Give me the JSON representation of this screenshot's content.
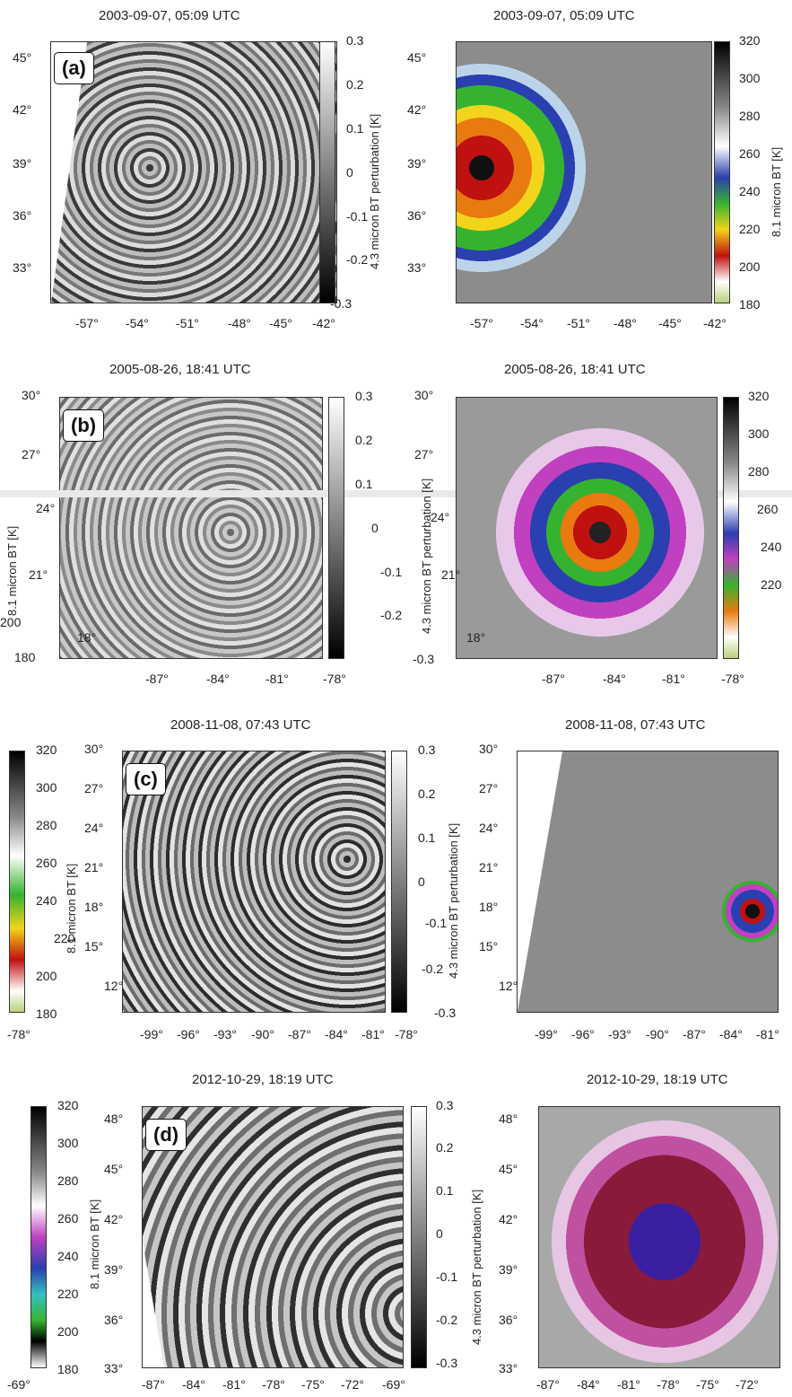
{
  "rows": [
    {
      "tag": "(a)",
      "left_title": "2003-09-07, 05:09 UTC",
      "right_title": "2003-09-07, 05:09 UTC",
      "lat_ticks": [
        "45°",
        "42°",
        "39°",
        "36°",
        "33°"
      ],
      "right_lat_ticks": [
        "45°",
        "42°",
        "39°",
        "36°",
        "33°"
      ],
      "lon_ticks": [
        "-57°",
        "-54°",
        "-51°",
        "-48°",
        "-45°",
        "-42°"
      ],
      "right_lon_ticks": [
        "-57°",
        "-54°",
        "-51°",
        "-48°",
        "-45°",
        "-42°"
      ],
      "pert_ticks": [
        "0.3",
        "0.2",
        "0.1",
        "0",
        "-0.1",
        "-0.2",
        "-0.3"
      ],
      "pert_label": "4.3 micron BT perturbation [K]",
      "bt_ticks": [
        "320",
        "300",
        "280",
        "260",
        "240",
        "220",
        "200",
        "180"
      ],
      "bt_label": "8.1 micron BT [K]"
    },
    {
      "tag": "(b)",
      "left_title": "2005-08-26, 18:41 UTC",
      "right_title": "2005-08-26, 18:41 UTC",
      "lat_ticks": [
        "30°",
        "27°",
        "24°",
        "21°",
        "18°"
      ],
      "right_lat_ticks": [
        "30°",
        "27°",
        "24°",
        "21°",
        "18°"
      ],
      "lon_ticks": [
        "-87°",
        "-84°",
        "-81°",
        "-78°"
      ],
      "right_lon_ticks": [
        "-87°",
        "-84°",
        "-81°",
        "-78°"
      ],
      "pert_ticks": [
        "0.3",
        "0.2",
        "0.1",
        "0",
        "-0.1",
        "-0.2",
        "-0.3"
      ],
      "pert_label": "4.3 micron BT perturbation [K]",
      "bt_ticks": [
        "320",
        "300",
        "280",
        "260",
        "240",
        "220",
        "200",
        "180"
      ],
      "bt_label": "8.1 micron BT [K]"
    },
    {
      "tag": "(c)",
      "left_title": "2008-11-08, 07:43 UTC",
      "right_title": "2008-11-08, 07:43 UTC",
      "lat_ticks": [
        "30°",
        "27°",
        "24°",
        "21°",
        "18°",
        "15°",
        "12°"
      ],
      "right_lat_ticks": [
        "30°",
        "27°",
        "24°",
        "21°",
        "18°",
        "15°",
        "12°"
      ],
      "lon_ticks": [
        "-99°",
        "-96°",
        "-93°",
        "-90°",
        "-87°",
        "-84°",
        "-81°",
        "-78°"
      ],
      "right_lon_ticks": [
        "-99°",
        "-96°",
        "-93°",
        "-90°",
        "-87°",
        "-84°",
        "-81°"
      ],
      "edge_lon_tick": "-78°",
      "pert_ticks": [
        "0.3",
        "0.2",
        "0.1",
        "0",
        "-0.1",
        "-0.2",
        "-0.3"
      ],
      "pert_label": "4.3 micron BT perturbation [K]",
      "bt_ticks": [
        "320",
        "300",
        "280",
        "260",
        "240",
        "220",
        "200",
        "180"
      ],
      "bt_label": "8.1 micron BT [K]"
    },
    {
      "tag": "(d)",
      "left_title": "2012-10-29, 18:19 UTC",
      "right_title": "2012-10-29, 18:19 UTC",
      "lat_ticks": [
        "48°",
        "45°",
        "42°",
        "39°",
        "36°",
        "33°"
      ],
      "right_lat_ticks": [
        "48°",
        "45°",
        "42°",
        "39°",
        "36°",
        "33°"
      ],
      "lon_ticks": [
        "-87°",
        "-84°",
        "-81°",
        "-78°",
        "-75°",
        "-72°",
        "-69°"
      ],
      "right_lon_ticks": [
        "-87°",
        "-84°",
        "-81°",
        "-78°",
        "-75°",
        "-72°"
      ],
      "edge_lon_tick": "-69°",
      "pert_ticks": [
        "0.3",
        "0.2",
        "0.1",
        "0",
        "-0.1",
        "-0.2",
        "-0.3"
      ],
      "pert_label": "4.3 micron BT perturbation [K]",
      "bt_ticks": [
        "320",
        "300",
        "280",
        "260",
        "240",
        "220",
        "200",
        "180"
      ],
      "bt_label": "8.1 micron BT [K]"
    }
  ]
}
